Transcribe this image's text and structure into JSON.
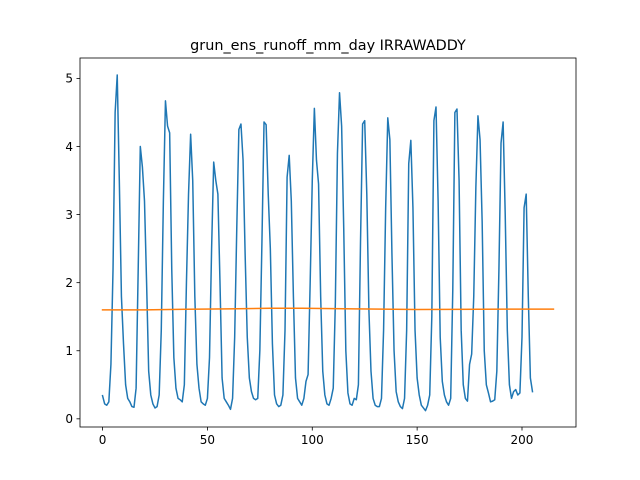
{
  "chart_data": {
    "type": "line",
    "title": "grun_ens_runoff_mm_day IRRAWADDY",
    "xlabel": "",
    "ylabel": "",
    "xlim": [
      -10.75,
      225.75
    ],
    "ylim": [
      -0.12,
      5.3
    ],
    "x_ticks": [
      0,
      50,
      100,
      150,
      200
    ],
    "y_ticks": [
      0,
      1,
      2,
      3,
      4,
      5
    ],
    "grid": false,
    "legend": "none",
    "series": [
      {
        "color": "#1f77b4",
        "x_start": 0,
        "x_step": 1,
        "values": [
          0.34,
          0.22,
          0.2,
          0.25,
          0.8,
          2.2,
          4.5,
          5.05,
          3.5,
          1.8,
          1.1,
          0.5,
          0.3,
          0.25,
          0.18,
          0.17,
          0.45,
          2.2,
          4.0,
          3.7,
          3.2,
          2.0,
          0.7,
          0.35,
          0.22,
          0.16,
          0.18,
          0.35,
          1.3,
          3.2,
          4.67,
          4.3,
          4.2,
          2.2,
          0.9,
          0.45,
          0.3,
          0.28,
          0.25,
          0.5,
          2.0,
          3.3,
          4.18,
          3.5,
          1.8,
          0.8,
          0.45,
          0.25,
          0.22,
          0.2,
          0.3,
          0.9,
          2.5,
          3.77,
          3.5,
          3.3,
          2.0,
          0.6,
          0.3,
          0.25,
          0.2,
          0.14,
          0.3,
          1.2,
          2.8,
          4.25,
          4.33,
          3.8,
          2.4,
          1.2,
          0.6,
          0.4,
          0.3,
          0.28,
          0.3,
          1.0,
          2.6,
          4.36,
          4.32,
          3.3,
          2.5,
          1.1,
          0.35,
          0.22,
          0.18,
          0.2,
          0.35,
          1.3,
          3.55,
          3.87,
          3.2,
          1.8,
          0.6,
          0.3,
          0.25,
          0.2,
          0.3,
          0.55,
          0.65,
          2.0,
          3.5,
          4.56,
          3.8,
          3.45,
          1.8,
          0.7,
          0.35,
          0.22,
          0.2,
          0.3,
          0.45,
          1.7,
          3.9,
          4.79,
          4.3,
          2.8,
          1.0,
          0.38,
          0.22,
          0.2,
          0.3,
          0.28,
          0.5,
          2.6,
          4.33,
          4.38,
          3.3,
          1.6,
          0.7,
          0.3,
          0.2,
          0.18,
          0.18,
          0.3,
          1.3,
          3.1,
          4.42,
          4.1,
          2.4,
          1.0,
          0.4,
          0.25,
          0.18,
          0.15,
          0.3,
          1.3,
          3.75,
          4.09,
          3.1,
          1.3,
          0.6,
          0.35,
          0.2,
          0.16,
          0.12,
          0.2,
          0.35,
          1.5,
          4.38,
          4.58,
          3.2,
          1.2,
          0.55,
          0.35,
          0.25,
          0.2,
          0.3,
          1.9,
          4.5,
          4.55,
          3.5,
          1.3,
          0.5,
          0.3,
          0.26,
          0.8,
          0.95,
          1.8,
          3.4,
          4.45,
          4.1,
          2.9,
          1.0,
          0.5,
          0.38,
          0.25,
          0.26,
          0.28,
          0.7,
          2.2,
          4.05,
          4.36,
          3.0,
          1.3,
          0.5,
          0.3,
          0.4,
          0.43,
          0.35,
          0.38,
          1.2,
          3.1,
          3.3,
          1.8,
          0.6,
          0.4
        ]
      },
      {
        "color": "#ff7f0e",
        "x_start": 0,
        "x_step": 1,
        "values_knots": [
          [
            0,
            1.6
          ],
          [
            20,
            1.6
          ],
          [
            40,
            1.61
          ],
          [
            60,
            1.615
          ],
          [
            80,
            1.625
          ],
          [
            95,
            1.625
          ],
          [
            120,
            1.615
          ],
          [
            150,
            1.605
          ],
          [
            180,
            1.61
          ],
          [
            215,
            1.612
          ]
        ]
      }
    ]
  }
}
